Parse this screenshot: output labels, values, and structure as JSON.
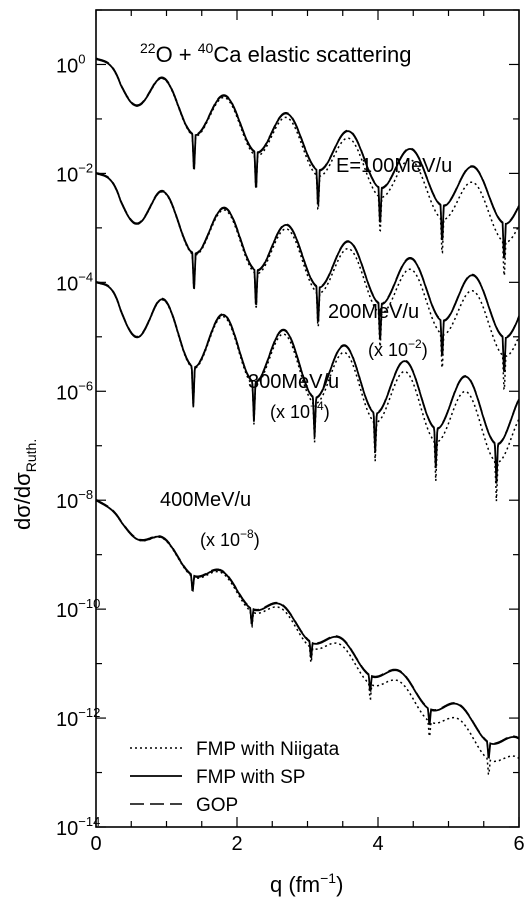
{
  "chart_data": {
    "type": "line",
    "title_parts": {
      "pre": "22",
      "nuc1": "O + ",
      "sup2": "40",
      "rest": "Ca elastic scattering"
    },
    "xlabel": {
      "base": "q (fm",
      "sup": "−1",
      "tail": ")"
    },
    "ylabel": {
      "d1": "dσ/dσ",
      "sub": "Ruth."
    },
    "xlim": [
      0,
      6
    ],
    "ylim_exp": [
      -14,
      1
    ],
    "x_ticks": [
      0,
      2,
      4,
      6
    ],
    "y_tick_exps": [
      -14,
      -12,
      -10,
      -8,
      -6,
      -4,
      -2,
      0
    ],
    "y_tick_base": "10",
    "curve_labels": [
      {
        "id": "e100",
        "text": "E=100MeV/u",
        "scale": ""
      },
      {
        "id": "e200",
        "text": "200MeV/u",
        "scale_pre": "(x 10",
        "scale_sup": "−2",
        "scale_post": ")"
      },
      {
        "id": "e300",
        "text": "300MeV/u",
        "scale_pre": "(x 10",
        "scale_sup": "−4",
        "scale_post": ")"
      },
      {
        "id": "e400",
        "text": "400MeV/u",
        "scale_pre": "(x 10",
        "scale_sup": "−8",
        "scale_post": ")"
      }
    ],
    "legend": {
      "placement": "bottom-left",
      "entries": [
        {
          "name": "FMP with Niigata",
          "style": "dotted"
        },
        {
          "name": "FMP with SP",
          "style": "solid"
        },
        {
          "name": "GOP",
          "style": "dashed"
        }
      ]
    },
    "series_params": [
      {
        "energy": "100MeV/u",
        "exp_scale": 0,
        "y0_exp": 0.1,
        "slope": -0.37,
        "period": 0.44,
        "first_min": 0.95,
        "depth": 0.8
      },
      {
        "energy": "200MeV/u",
        "exp_scale": -2,
        "y0_exp": -2.0,
        "slope": -0.35,
        "period": 0.44,
        "first_min": 0.95,
        "depth": 0.9
      },
      {
        "energy": "300MeV/u",
        "exp_scale": -4,
        "y0_exp": -4.0,
        "slope": -0.33,
        "period": 0.43,
        "first_min": 0.95,
        "depth": 1.0
      },
      {
        "energy": "400MeV/u",
        "exp_scale": -8,
        "y0_exp": -8.0,
        "slope": -0.73,
        "period": 0.42,
        "first_min": 0.95,
        "depth": 0.35
      }
    ]
  }
}
